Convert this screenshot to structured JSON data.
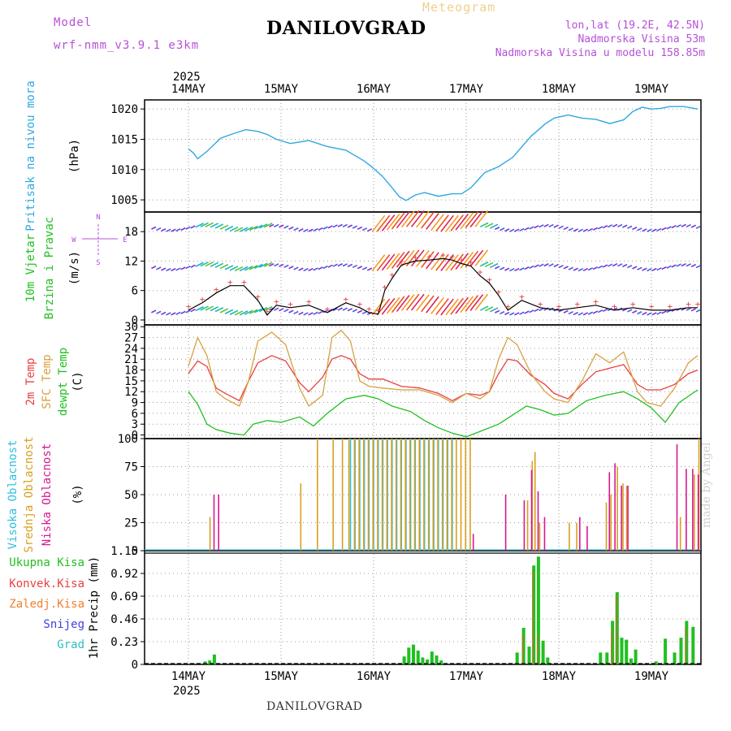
{
  "header": {
    "model_label": "Model",
    "model_id": "wrf-nmm_v3.9.1  e3km",
    "title": "DANILOVGRAD",
    "meteogram_label": "Meteogram",
    "lonlat": "lon,lat (19.2E, 42.5N)",
    "elevation": "Nadmorska Visina 53m",
    "model_elevation": "Nadmorska Visina u modelu 158.85m"
  },
  "footer": {
    "title": "DANILOVGRAD",
    "credit": "made by Angel"
  },
  "colors": {
    "pressure": "#30a8e0",
    "temp": "#e84040",
    "sfc": "#d8a040",
    "dew": "#20c020",
    "low_cloud": "#d81890",
    "mid_cloud": "#d8a020",
    "high_cloud": "#30c0e0",
    "total_precip": "#20c020",
    "conv_precip": "#e84040",
    "strat_precip": "#f08030",
    "snow": "#4040e0",
    "graupel": "#30c0c0",
    "wind_label": "#20c020",
    "axis": "#000000"
  },
  "chart_data": {
    "type": "meteogram",
    "x_axis": {
      "year": "2025",
      "days": [
        "14MAY",
        "15MAY",
        "16MAY",
        "17MAY",
        "18MAY",
        "19MAY"
      ]
    },
    "panels": [
      {
        "id": "pressure",
        "type": "line",
        "ylabel_lines": [
          "Pritisak na nivou mora",
          "(hPa)"
        ],
        "yticks": [
          1005,
          1010,
          1015,
          1020
        ],
        "ylim": [
          1003,
          1021.5
        ],
        "series": [
          {
            "name": "Pritisak",
            "x": [
              0,
              0.05,
              0.1,
              0.2,
              0.35,
              0.5,
              0.62,
              0.75,
              0.85,
              0.95,
              1.1,
              1.3,
              1.5,
              1.7,
              1.9,
              2.0,
              2.1,
              2.2,
              2.28,
              2.35,
              2.45,
              2.55,
              2.7,
              2.85,
              2.95,
              3.05,
              3.2,
              3.35,
              3.5,
              3.7,
              3.85,
              3.95,
              4.1,
              4.25,
              4.4,
              4.55,
              4.7,
              4.8,
              4.9,
              5.0,
              5.1,
              5.2,
              5.35,
              5.5
            ],
            "values": [
              1013.4,
              1012.8,
              1011.8,
              1013.0,
              1015.2,
              1016.0,
              1016.6,
              1016.3,
              1015.8,
              1015.0,
              1014.3,
              1014.8,
              1013.8,
              1013.2,
              1011.4,
              1010.2,
              1008.8,
              1007.0,
              1005.5,
              1004.9,
              1005.8,
              1006.2,
              1005.6,
              1006.0,
              1006.0,
              1007.0,
              1009.5,
              1010.5,
              1012.0,
              1015.5,
              1017.5,
              1018.5,
              1019.0,
              1018.5,
              1018.3,
              1017.6,
              1018.2,
              1019.6,
              1020.3,
              1020.0,
              1020.1,
              1020.4,
              1020.4,
              1020.0
            ]
          }
        ]
      },
      {
        "id": "wind",
        "type": "line",
        "ylabel_lines": [
          "10m Vjetar",
          "Brzina i Pravac",
          "(m/s)"
        ],
        "compass": {
          "n": "N",
          "s": "S",
          "e": "E",
          "w": "W"
        },
        "yticks": [
          0,
          6,
          12,
          18
        ],
        "ylim": [
          -1,
          22
        ],
        "series": [
          {
            "name": "Brzina",
            "x": [
              0,
              0.15,
              0.3,
              0.45,
              0.6,
              0.75,
              0.85,
              0.95,
              1.1,
              1.3,
              1.5,
              1.7,
              1.85,
              1.95,
              2.05,
              2.12,
              2.2,
              2.3,
              2.45,
              2.6,
              2.75,
              2.85,
              2.95,
              3.05,
              3.15,
              3.25,
              3.35,
              3.45,
              3.6,
              3.8,
              4.0,
              4.2,
              4.4,
              4.6,
              4.8,
              5.0,
              5.2,
              5.4,
              5.5
            ],
            "values": [
              2.0,
              3.5,
              5.5,
              7.0,
              7.0,
              4.0,
              1.0,
              3.0,
              2.5,
              3.0,
              1.5,
              3.5,
              2.5,
              1.5,
              1.2,
              6.0,
              8.5,
              11.2,
              12.0,
              12.2,
              12.5,
              12.2,
              11.5,
              11.0,
              9.0,
              7.5,
              5.0,
              2.0,
              4.0,
              2.5,
              2.0,
              2.5,
              3.0,
              2.0,
              2.5,
              2.0,
              2.0,
              2.5,
              2.5
            ]
          }
        ]
      },
      {
        "id": "temperature",
        "type": "line",
        "ylabel_lines": [
          "2m Temp",
          "SFC Temp",
          "dewpt Temp",
          "(C)"
        ],
        "yticks": [
          0,
          3,
          6,
          9,
          12,
          15,
          18,
          21,
          24,
          27,
          30
        ],
        "ylim": [
          -1,
          30.5
        ],
        "series": [
          {
            "name": "2m Temp",
            "x": [
              0,
              0.1,
              0.2,
              0.3,
              0.4,
              0.55,
              0.65,
              0.75,
              0.9,
              1.05,
              1.2,
              1.3,
              1.45,
              1.55,
              1.65,
              1.75,
              1.85,
              1.95,
              2.1,
              2.3,
              2.5,
              2.7,
              2.85,
              3.0,
              3.15,
              3.25,
              3.35,
              3.45,
              3.55,
              3.7,
              3.85,
              3.95,
              4.1,
              4.25,
              4.4,
              4.55,
              4.7,
              4.85,
              4.95,
              5.1,
              5.25,
              5.4,
              5.5
            ],
            "values": [
              17,
              20.5,
              19,
              13,
              11.5,
              9.5,
              15,
              20,
              22,
              20.5,
              14.5,
              12,
              16,
              21,
              22,
              21,
              17,
              15.5,
              15.5,
              13.5,
              13,
              11.5,
              9.5,
              11.5,
              11,
              12,
              17,
              21,
              20.5,
              16.5,
              14,
              11.5,
              10,
              14,
              17.5,
              18.5,
              19.5,
              14,
              12.5,
              12.5,
              14,
              17,
              18
            ]
          },
          {
            "name": "SFC Temp",
            "x": [
              0,
              0.1,
              0.2,
              0.3,
              0.4,
              0.55,
              0.65,
              0.75,
              0.9,
              1.05,
              1.2,
              1.3,
              1.45,
              1.55,
              1.65,
              1.75,
              1.85,
              1.95,
              2.1,
              2.3,
              2.5,
              2.7,
              2.85,
              3.0,
              3.15,
              3.25,
              3.35,
              3.45,
              3.55,
              3.7,
              3.85,
              3.95,
              4.1,
              4.25,
              4.4,
              4.55,
              4.7,
              4.85,
              4.95,
              5.1,
              5.25,
              5.4,
              5.5
            ],
            "values": [
              19,
              27,
              22,
              12,
              10,
              8,
              15,
              26,
              28.5,
              25,
              13,
              8,
              11,
              27,
              29,
              26,
              15,
              13.5,
              13,
              12.5,
              12.5,
              11,
              9,
              11.5,
              10,
              12,
              21,
              27,
              25,
              17,
              12,
              10,
              9,
              15,
              22.5,
              20,
              23,
              12,
              9,
              8,
              13,
              20,
              22
            ]
          },
          {
            "name": "dewpt Temp",
            "x": [
              0,
              0.1,
              0.2,
              0.3,
              0.45,
              0.6,
              0.7,
              0.85,
              1.0,
              1.2,
              1.35,
              1.5,
              1.7,
              1.9,
              2.05,
              2.2,
              2.4,
              2.55,
              2.7,
              2.85,
              3.0,
              3.15,
              3.35,
              3.5,
              3.65,
              3.8,
              3.95,
              4.1,
              4.3,
              4.5,
              4.7,
              4.85,
              5.0,
              5.15,
              5.3,
              5.5
            ],
            "values": [
              12,
              8.5,
              3,
              1.5,
              0.5,
              0,
              3,
              4,
              3.5,
              5,
              2.5,
              6,
              10,
              11,
              10,
              8,
              6.5,
              4,
              2,
              0.5,
              -0.5,
              1,
              3,
              5.5,
              8,
              7,
              5.5,
              6,
              9.5,
              11,
              12,
              10,
              7.5,
              3.5,
              9,
              12.5
            ]
          }
        ]
      },
      {
        "id": "cloud",
        "type": "bar",
        "ylabel_lines": [
          "Visoka Oblacnost",
          "Srednja Oblacnost",
          "Niska Oblacnost",
          "(%)"
        ],
        "yticks": [
          0,
          25,
          50,
          75,
          100
        ],
        "ylim": [
          0,
          100
        ],
        "series": [
          {
            "name": "Visoka",
            "x": [
              1.75,
              1.8,
              1.85,
              1.9,
              1.95,
              2.0,
              2.05,
              2.1,
              2.15,
              2.2,
              2.25,
              2.3,
              2.35,
              2.4,
              2.45,
              2.5,
              2.55,
              2.6,
              2.65,
              2.7,
              2.75,
              2.8,
              2.85
            ],
            "values": [
              100,
              100,
              100,
              100,
              100,
              100,
              100,
              100,
              100,
              100,
              100,
              100,
              100,
              100,
              100,
              100,
              100,
              100,
              100,
              100,
              100,
              100,
              100
            ]
          },
          {
            "name": "Srednja",
            "x": [
              0.22,
              1.2,
              1.38,
              1.55,
              1.65,
              1.72,
              1.78,
              1.83,
              1.88,
              1.93,
              1.98,
              2.03,
              2.08,
              2.13,
              2.18,
              2.23,
              2.28,
              2.33,
              2.38,
              2.43,
              2.48,
              2.53,
              2.58,
              2.63,
              2.68,
              2.73,
              2.78,
              2.83,
              2.88,
              2.93,
              2.98,
              3.03,
              3.65,
              3.7,
              3.73,
              3.78,
              4.1,
              4.18,
              4.5,
              4.55,
              4.62,
              4.68,
              4.72,
              5.3,
              5.45,
              5.5
            ],
            "values": [
              30,
              60,
              100,
              100,
              100,
              100,
              100,
              100,
              100,
              100,
              100,
              100,
              100,
              100,
              100,
              100,
              100,
              100,
              100,
              100,
              100,
              100,
              100,
              100,
              100,
              100,
              100,
              100,
              100,
              100,
              100,
              100,
              45,
              80,
              88,
              25,
              25,
              25,
              43,
              50,
              75,
              60,
              58,
              30,
              68,
              100
            ]
          },
          {
            "name": "Niska",
            "x": [
              0.25,
              0.3,
              3.05,
              3.4,
              3.6,
              3.68,
              3.75,
              3.82,
              4.2,
              4.28,
              4.52,
              4.58,
              4.65,
              4.72,
              5.25,
              5.35,
              5.42,
              5.48
            ],
            "values": [
              50,
              50,
              15,
              50,
              45,
              72,
              53,
              30,
              30,
              22,
              70,
              78,
              58,
              58,
              95,
              73,
              73,
              68
            ]
          }
        ]
      },
      {
        "id": "precip",
        "type": "bar",
        "ylabel_lines": [
          "Ukupna  Kisa",
          "Konvek.Kisa",
          "Zaledj.Kisa",
          "Snijeg",
          "Grad",
          "1hr Precip (mm)"
        ],
        "yticks": [
          0,
          0.23,
          0.46,
          0.69,
          0.92,
          1.15
        ],
        "ylim": [
          0,
          1.15
        ],
        "series": [
          {
            "name": "Ukupna Kisa",
            "x": [
              0.18,
              0.23,
              0.28,
              2.33,
              2.38,
              2.43,
              2.48,
              2.53,
              2.58,
              2.63,
              2.68,
              2.73,
              3.55,
              3.62,
              3.68,
              3.73,
              3.78,
              3.83,
              3.88,
              4.45,
              4.52,
              4.58,
              4.63,
              4.68,
              4.73,
              4.78,
              4.83,
              5.05,
              5.15,
              5.25,
              5.32,
              5.38,
              5.45
            ],
            "values": [
              0.03,
              0.04,
              0.1,
              0.08,
              0.17,
              0.2,
              0.14,
              0.07,
              0.05,
              0.13,
              0.09,
              0.04,
              0.12,
              0.37,
              0.18,
              1.0,
              1.09,
              0.24,
              0.07,
              0.12,
              0.12,
              0.44,
              0.73,
              0.27,
              0.25,
              0.06,
              0.15,
              0.03,
              0.26,
              0.12,
              0.27,
              0.44,
              0.38
            ]
          },
          {
            "name": "Konvek.Kisa",
            "x": [
              3.62,
              3.73,
              3.78,
              4.58,
              4.63,
              5.38
            ],
            "values": [
              0.3,
              0.95,
              0.3,
              0.35,
              0.7,
              0.38
            ]
          }
        ]
      }
    ]
  }
}
